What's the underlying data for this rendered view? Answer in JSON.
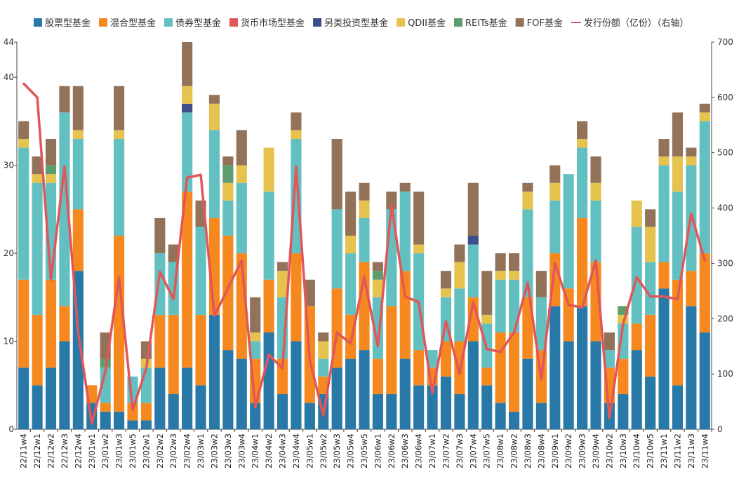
{
  "chart_data": {
    "type": "bar",
    "stacked": true,
    "categories": [
      "22/11w4",
      "22/12w1",
      "22/12w2",
      "22/12w3",
      "22/12w4",
      "23/01w1",
      "23/01w2",
      "23/01w3",
      "23/01w5",
      "23/02w1",
      "23/02w2",
      "23/02w3",
      "23/02w4",
      "23/03w1",
      "23/03w2",
      "23/03w3",
      "23/03w4",
      "23/04w1",
      "23/04w2",
      "23/04w3",
      "23/04w4",
      "23/05w1",
      "23/05w2",
      "23/05w3",
      "23/05w4",
      "23/05w5",
      "23/06w1",
      "23/06w2",
      "23/06w3",
      "23/06w4",
      "23/07w1",
      "23/07w2",
      "23/07w3",
      "23/07w4",
      "23/07w5",
      "23/08w1",
      "23/08w2",
      "23/08w3",
      "23/08w4",
      "23/09w1",
      "23/09w2",
      "23/09w3",
      "23/09w4",
      "23/10w2",
      "23/10w3",
      "23/10w4",
      "23/10w5",
      "23/11w1",
      "23/11w2",
      "23/11w3",
      "23/11w4"
    ],
    "series": [
      {
        "name": "股票型基金",
        "color": "#2878a8",
        "values": [
          7,
          5,
          7,
          10,
          18,
          3,
          2,
          2,
          1,
          1,
          7,
          4,
          7,
          5,
          13,
          9,
          8,
          3,
          11,
          4,
          10,
          3,
          4,
          7,
          8,
          9,
          4,
          4,
          8,
          5,
          5,
          6,
          4,
          10,
          5,
          3,
          2,
          8,
          3,
          14,
          10,
          14,
          10,
          3,
          4,
          9,
          6,
          16,
          5,
          14,
          11
        ]
      },
      {
        "name": "混合型基金",
        "color": "#f5891f",
        "values": [
          10,
          8,
          10,
          4,
          7,
          2,
          1,
          20,
          2,
          2,
          6,
          9,
          20,
          8,
          11,
          13,
          12,
          5,
          6,
          4,
          10,
          11,
          2,
          9,
          5,
          10,
          4,
          10,
          10,
          4,
          2,
          4,
          6,
          5,
          2,
          8,
          9,
          7,
          6,
          6,
          6,
          10,
          9,
          4,
          4,
          3,
          7,
          3,
          12,
          4,
          9
        ]
      },
      {
        "name": "债券型基金",
        "color": "#62c0c1",
        "values": [
          15,
          15,
          11,
          22,
          8,
          0,
          4,
          11,
          3,
          4,
          7,
          6,
          9,
          10,
          10,
          4,
          8,
          2,
          10,
          7,
          13,
          0,
          2,
          9,
          7,
          5,
          7,
          11,
          9,
          11,
          2,
          5,
          6,
          6,
          5,
          6,
          6,
          10,
          6,
          6,
          13,
          8,
          7,
          2,
          4,
          11,
          6,
          11,
          10,
          12,
          15
        ]
      },
      {
        "name": "货币市场型基金",
        "color": "#e15759",
        "values": [
          0,
          0,
          0,
          0,
          0,
          0,
          0,
          0,
          0,
          0,
          0,
          0,
          0,
          0,
          0,
          0,
          0,
          0,
          0,
          0,
          0,
          0,
          0,
          0,
          0,
          0,
          0,
          0,
          0,
          0,
          0,
          0,
          0,
          0,
          0,
          0,
          0,
          0,
          0,
          0,
          0,
          0,
          0,
          0,
          0,
          0,
          0,
          0,
          0,
          0,
          0
        ]
      },
      {
        "name": "另类投资型基金",
        "color": "#3e4e8a",
        "values": [
          0,
          0,
          0,
          0,
          0,
          0,
          0,
          0,
          0,
          0,
          0,
          0,
          1,
          0,
          0,
          0,
          0,
          0,
          0,
          0,
          0,
          0,
          0,
          0,
          0,
          0,
          0,
          0,
          0,
          0,
          0,
          0,
          0,
          1,
          0,
          0,
          0,
          0,
          0,
          0,
          0,
          0,
          0,
          0,
          0,
          0,
          0,
          0,
          0,
          0,
          0
        ]
      },
      {
        "name": "QDII基金",
        "color": "#e6c24f",
        "values": [
          1,
          1,
          1,
          0,
          1,
          0,
          0,
          1,
          0,
          1,
          0,
          0,
          2,
          0,
          3,
          2,
          2,
          1,
          5,
          3,
          1,
          0,
          2,
          0,
          2,
          2,
          2,
          0,
          0,
          1,
          0,
          1,
          3,
          0,
          1,
          1,
          1,
          2,
          0,
          2,
          0,
          1,
          2,
          0,
          1,
          3,
          4,
          1,
          4,
          1,
          1
        ]
      },
      {
        "name": "REITs基金",
        "color": "#5e9e6e",
        "values": [
          0,
          0,
          1,
          0,
          0,
          0,
          1,
          0,
          0,
          0,
          0,
          0,
          0,
          0,
          0,
          2,
          0,
          0,
          0,
          0,
          0,
          0,
          0,
          0,
          0,
          0,
          1,
          0,
          0,
          0,
          0,
          0,
          0,
          0,
          0,
          0,
          0,
          0,
          0,
          0,
          0,
          0,
          0,
          0,
          1,
          0,
          0,
          0,
          0,
          0,
          0
        ]
      },
      {
        "name": "FOF基金",
        "color": "#93725a",
        "values": [
          2,
          2,
          3,
          3,
          5,
          0,
          3,
          5,
          0,
          2,
          4,
          2,
          5,
          3,
          1,
          1,
          4,
          4,
          0,
          1,
          2,
          3,
          1,
          8,
          5,
          2,
          1,
          2,
          1,
          6,
          0,
          2,
          2,
          6,
          5,
          2,
          2,
          1,
          3,
          2,
          0,
          2,
          3,
          2,
          0,
          0,
          2,
          2,
          5,
          1,
          1
        ]
      }
    ],
    "line": {
      "name": "发行份额（亿份）（右轴）",
      "color": "#e15759",
      "axis": "right",
      "values": [
        625,
        600,
        270,
        475,
        175,
        10,
        105,
        275,
        35,
        110,
        285,
        235,
        455,
        460,
        205,
        255,
        305,
        40,
        135,
        110,
        475,
        125,
        25,
        175,
        155,
        275,
        150,
        405,
        240,
        230,
        65,
        195,
        100,
        230,
        145,
        140,
        175,
        265,
        90,
        300,
        225,
        220,
        305,
        20,
        190,
        275,
        240,
        240,
        235,
        390,
        305
      ]
    },
    "y_left": {
      "min": 0,
      "max": 44,
      "ticks": [
        0,
        10,
        20,
        30,
        40,
        44
      ]
    },
    "y_right": {
      "min": 0,
      "max": 700,
      "ticks": [
        0,
        100,
        200,
        300,
        400,
        500,
        600,
        700
      ]
    },
    "xlabel": "",
    "ylabel": "",
    "grid": false,
    "legend_position": "top"
  }
}
